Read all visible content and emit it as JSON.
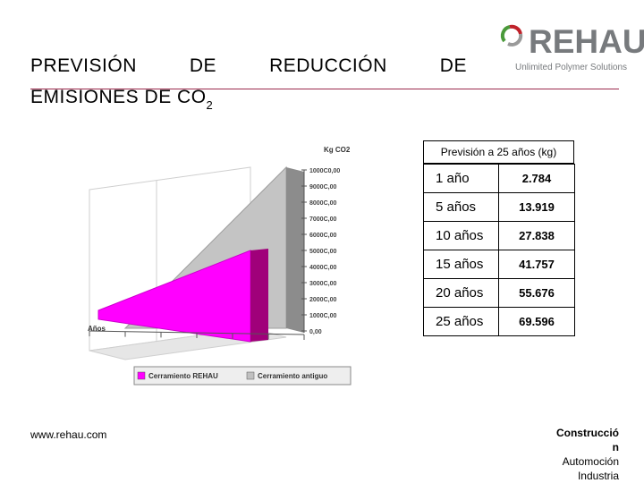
{
  "title": {
    "line1_words": [
      "PREVISIÓN",
      "DE",
      "REDUCCIÓN",
      "DE"
    ],
    "line2": "EMISIONES DE CO",
    "line2_sub": "2"
  },
  "logo": {
    "word": "REHAU",
    "tagline": "Unlimited Polymer Solutions"
  },
  "colors": {
    "accent_rule": "#9b2a4d",
    "series_rehau": "#ff00ff",
    "series_old": "#c0c0c0"
  },
  "chart_data": {
    "type": "area",
    "ylabel": "Kg CO2",
    "xlabel": "Años",
    "y_ticks": [
      "0,00",
      "1000C,00",
      "2000C,00",
      "3000C,00",
      "4000C,00",
      "5000C,00",
      "6000C,00",
      "7000C,00",
      "8000C,00",
      "9000C,00",
      "1000C0,00"
    ],
    "ylim": [
      0,
      100000
    ],
    "x": [
      0,
      25
    ],
    "series": [
      {
        "name": "Cerramiento REHAU",
        "values": [
          0,
          55000
        ]
      },
      {
        "name": "Cerramiento antiguo",
        "values": [
          0,
          100000
        ]
      }
    ],
    "legend": [
      "Cerramiento REHAU",
      "Cerramiento antiguo"
    ]
  },
  "table": {
    "title": "Previsión a 25 años (kg)",
    "rows": [
      {
        "label": "1 año",
        "value": "2.784"
      },
      {
        "label": "5 años",
        "value": "13.919"
      },
      {
        "label": "10 años",
        "value": "27.838"
      },
      {
        "label": "15 años",
        "value": "41.757"
      },
      {
        "label": "20 años",
        "value": "55.676"
      },
      {
        "label": "25 años",
        "value": "69.596"
      }
    ]
  },
  "footer": {
    "url": "www.rehau.com",
    "lines": [
      "Construcció",
      "n",
      "Automoción",
      "Industria"
    ]
  }
}
